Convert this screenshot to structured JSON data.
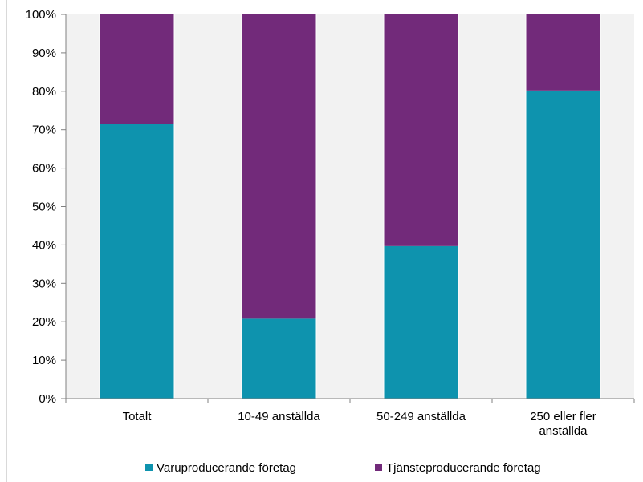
{
  "chart_data": {
    "type": "bar",
    "stacked": true,
    "percent_stacked": true,
    "categories": [
      [
        "Totalt"
      ],
      [
        "10-49 anställda"
      ],
      [
        "50-249 anställda"
      ],
      [
        "250 eller fler",
        "anställda"
      ]
    ],
    "series": [
      {
        "name": "Varuproducerande företag",
        "color": "#0E93AE",
        "values": [
          71.5,
          20.8,
          39.7,
          80.2
        ]
      },
      {
        "name": "Tjänsteproducerande företag",
        "color": "#722A7A",
        "values": [
          28.5,
          79.2,
          60.3,
          19.8
        ]
      }
    ],
    "ylim": [
      0,
      100
    ],
    "yticks": [
      0,
      10,
      20,
      30,
      40,
      50,
      60,
      70,
      80,
      90,
      100
    ],
    "ytick_format": "{v}%",
    "plot_background": "#F2F2F2",
    "grid": false,
    "legend_position": "bottom"
  }
}
